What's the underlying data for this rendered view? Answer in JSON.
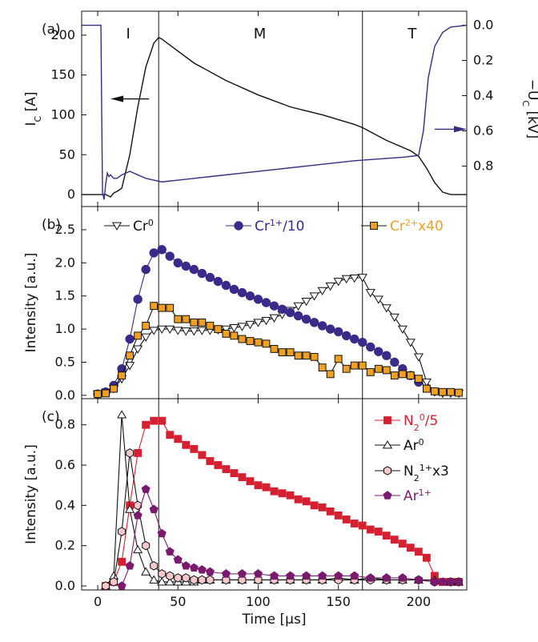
{
  "colors": {
    "black": "#111111",
    "purple": "#3b2a7e",
    "cr1": "#3b2a8a",
    "cr2": "#f0a020",
    "n2": "#d42030",
    "n2ion": "#f6c8cc",
    "ar1": "#7a1a6e"
  },
  "shared_x": {
    "xlabel": "Time [μs]",
    "xlim": [
      -10,
      230
    ],
    "xticks": [
      0,
      50,
      100,
      150,
      200
    ],
    "region_bounds": [
      38,
      165
    ]
  },
  "chart_data": [
    {
      "panel": "(a)",
      "type": "line",
      "ylabel_left": "I_C [A]",
      "ylabel_right": "−U_C [kV]",
      "ylim_left": [
        -15,
        230
      ],
      "yticks_left": [
        0,
        50,
        100,
        150,
        200
      ],
      "ylim_right": [
        1.03,
        -0.08
      ],
      "yticks_right": [
        0.0,
        0.2,
        0.4,
        0.6,
        0.8
      ],
      "yticklabels_right": [
        "0.0",
        "0.2",
        "0.4",
        "0.6",
        "0.8"
      ],
      "regions": [
        {
          "label": "I",
          "x": 19
        },
        {
          "label": "M",
          "x": 101
        },
        {
          "label": "T",
          "x": 196
        }
      ],
      "series": [
        {
          "key": "current",
          "axis": "left",
          "color": "#111111",
          "x": [
            -10,
            5,
            8,
            10,
            12,
            15,
            20,
            25,
            30,
            35,
            38,
            40,
            50,
            60,
            80,
            100,
            120,
            140,
            160,
            165,
            180,
            195,
            200,
            205,
            210,
            215,
            220,
            230
          ],
          "y": [
            0,
            0,
            -3,
            2,
            4,
            8,
            50,
            110,
            160,
            190,
            197,
            195,
            180,
            165,
            143,
            125,
            110,
            100,
            88,
            84,
            68,
            55,
            48,
            33,
            15,
            3,
            0,
            0
          ]
        },
        {
          "key": "voltage",
          "axis": "right",
          "color": "#3b2a7e",
          "x": [
            -10,
            0,
            2,
            2.5,
            3,
            4,
            5,
            6,
            7,
            8,
            10,
            12,
            15,
            20,
            25,
            30,
            35,
            40,
            50,
            70,
            100,
            130,
            160,
            190,
            200,
            203,
            206,
            210,
            215,
            220,
            230
          ],
          "y": [
            0.0,
            0.0,
            0.0,
            0.5,
            0.95,
            0.99,
            0.9,
            0.84,
            0.86,
            0.85,
            0.87,
            0.87,
            0.85,
            0.83,
            0.85,
            0.87,
            0.88,
            0.89,
            0.88,
            0.86,
            0.83,
            0.8,
            0.77,
            0.75,
            0.74,
            0.6,
            0.3,
            0.12,
            0.04,
            0.01,
            0.0
          ]
        }
      ]
    },
    {
      "panel": "(b)",
      "type": "line",
      "ylabel": "Intensity [a.u.]",
      "ylim": [
        -0.05,
        2.85
      ],
      "yticks": [
        0.0,
        0.5,
        1.0,
        1.5,
        2.0,
        2.5
      ],
      "series": [
        {
          "name": "Cr",
          "sup": "0",
          "suffix": "",
          "marker": "triangle-down",
          "color": "#111111",
          "fill": "#ffffff",
          "x": [
            0,
            5,
            10,
            15,
            20,
            25,
            30,
            35,
            40,
            45,
            50,
            55,
            60,
            65,
            70,
            75,
            80,
            85,
            90,
            95,
            100,
            105,
            110,
            115,
            120,
            125,
            130,
            135,
            140,
            145,
            150,
            155,
            160,
            165,
            170,
            175,
            180,
            185,
            190,
            195,
            200,
            205,
            210,
            215,
            220,
            225
          ],
          "y": [
            0.02,
            0.05,
            0.1,
            0.25,
            0.45,
            0.7,
            0.88,
            0.98,
            1.0,
            1.0,
            0.98,
            0.97,
            0.97,
            0.98,
            0.98,
            0.99,
            1.0,
            1.02,
            1.04,
            1.07,
            1.1,
            1.13,
            1.17,
            1.22,
            1.28,
            1.35,
            1.42,
            1.5,
            1.58,
            1.65,
            1.72,
            1.76,
            1.77,
            1.78,
            1.55,
            1.45,
            1.32,
            1.18,
            1.0,
            0.8,
            0.58,
            0.2,
            0.05,
            0.03,
            0.03,
            0.03
          ]
        },
        {
          "name": "Cr",
          "sup": "1+",
          "suffix": "/10",
          "marker": "circle",
          "color": "#3b2a8a",
          "fill": "#3b2a8a",
          "x": [
            0,
            5,
            10,
            15,
            20,
            25,
            30,
            35,
            40,
            45,
            50,
            55,
            60,
            65,
            70,
            75,
            80,
            85,
            90,
            95,
            100,
            105,
            110,
            115,
            120,
            125,
            130,
            135,
            140,
            145,
            150,
            155,
            160,
            165,
            170,
            175,
            180,
            185,
            190,
            195,
            200
          ],
          "y": [
            0.02,
            0.05,
            0.15,
            0.4,
            0.85,
            1.45,
            1.9,
            2.15,
            2.2,
            2.1,
            2.0,
            1.95,
            1.9,
            1.84,
            1.78,
            1.72,
            1.66,
            1.6,
            1.55,
            1.5,
            1.45,
            1.4,
            1.35,
            1.3,
            1.25,
            1.2,
            1.15,
            1.1,
            1.05,
            1.0,
            0.96,
            0.9,
            0.85,
            0.8,
            0.73,
            0.66,
            0.6,
            0.5,
            0.4,
            0.3,
            0.2
          ]
        },
        {
          "name": "Cr",
          "sup": "2+",
          "suffix": "x40",
          "marker": "square",
          "color": "#111111",
          "fill": "#f0a020",
          "x": [
            0,
            5,
            10,
            15,
            20,
            25,
            30,
            35,
            40,
            45,
            50,
            55,
            60,
            65,
            70,
            75,
            80,
            85,
            90,
            95,
            100,
            105,
            110,
            115,
            120,
            125,
            130,
            135,
            140,
            145,
            150,
            155,
            160,
            165,
            170,
            175,
            180,
            185,
            190,
            195,
            200,
            205,
            210,
            215,
            220,
            225
          ],
          "y": [
            0.02,
            0.03,
            0.1,
            0.3,
            0.6,
            0.9,
            1.05,
            1.35,
            1.32,
            1.32,
            1.15,
            1.15,
            1.1,
            1.1,
            1.05,
            1.0,
            0.93,
            0.9,
            0.85,
            0.82,
            0.8,
            0.78,
            0.7,
            0.65,
            0.65,
            0.6,
            0.6,
            0.58,
            0.42,
            0.32,
            0.55,
            0.4,
            0.45,
            0.45,
            0.35,
            0.4,
            0.38,
            0.3,
            0.32,
            0.3,
            0.25,
            0.1,
            0.06,
            0.05,
            0.05,
            0.04
          ]
        }
      ]
    },
    {
      "panel": "(c)",
      "type": "line",
      "ylabel": "Intensity [a.u.]",
      "ylim": [
        -0.02,
        0.93
      ],
      "yticks": [
        0.0,
        0.2,
        0.4,
        0.6,
        0.8
      ],
      "series": [
        {
          "name": "N",
          "sub": "2",
          "sup": "0",
          "suffix": "/5",
          "marker": "square",
          "color": "#d42030",
          "fill": "#d42030",
          "x": [
            5,
            10,
            15,
            20,
            25,
            30,
            35,
            40,
            45,
            50,
            55,
            60,
            65,
            70,
            75,
            80,
            85,
            90,
            95,
            100,
            105,
            110,
            115,
            120,
            125,
            130,
            135,
            140,
            145,
            150,
            155,
            160,
            165,
            170,
            175,
            180,
            185,
            190,
            195,
            200,
            205,
            210,
            215,
            220,
            225
          ],
          "y": [
            0.0,
            0.02,
            0.12,
            0.4,
            0.66,
            0.8,
            0.82,
            0.82,
            0.75,
            0.73,
            0.7,
            0.68,
            0.65,
            0.62,
            0.6,
            0.58,
            0.56,
            0.54,
            0.52,
            0.5,
            0.49,
            0.47,
            0.46,
            0.45,
            0.43,
            0.42,
            0.4,
            0.39,
            0.37,
            0.35,
            0.33,
            0.31,
            0.3,
            0.28,
            0.27,
            0.25,
            0.23,
            0.21,
            0.19,
            0.17,
            0.14,
            0.05,
            0.02,
            0.02,
            0.02
          ]
        },
        {
          "name": "Ar",
          "sup": "0",
          "suffix": "",
          "marker": "triangle-up",
          "color": "#111111",
          "fill": "#ffffff",
          "x": [
            5,
            10,
            15,
            20,
            25,
            30,
            35,
            40,
            45,
            50,
            55,
            60,
            65,
            70,
            80,
            90,
            100,
            110,
            120,
            130,
            140,
            150,
            160,
            170,
            180,
            190,
            200,
            210,
            220,
            225
          ],
          "y": [
            0.0,
            0.05,
            0.85,
            0.38,
            0.18,
            0.07,
            0.03,
            0.02,
            0.02,
            0.02,
            0.02,
            0.02,
            0.03,
            0.03,
            0.03,
            0.03,
            0.03,
            0.03,
            0.03,
            0.03,
            0.03,
            0.04,
            0.03,
            0.04,
            0.03,
            0.03,
            0.03,
            0.03,
            0.02,
            0.02
          ]
        },
        {
          "name": "N",
          "sub": "2",
          "sup": "1+",
          "suffix": "x3",
          "marker": "hexagon",
          "color": "#111111",
          "fill": "#f6c8cc",
          "x": [
            5,
            10,
            15,
            20,
            25,
            30,
            35,
            40,
            45,
            50,
            55,
            60,
            65,
            70,
            80,
            90,
            100,
            110,
            120,
            130,
            140,
            150,
            160,
            170,
            180,
            190,
            200,
            210,
            220,
            225
          ],
          "y": [
            0.0,
            0.02,
            0.27,
            0.66,
            0.4,
            0.2,
            0.1,
            0.06,
            0.05,
            0.04,
            0.04,
            0.03,
            0.03,
            0.03,
            0.03,
            0.03,
            0.03,
            0.03,
            0.03,
            0.03,
            0.03,
            0.03,
            0.03,
            0.03,
            0.03,
            0.03,
            0.03,
            0.02,
            0.02,
            0.02
          ]
        },
        {
          "name": "Ar",
          "sup": "1+",
          "suffix": "",
          "marker": "pentagon",
          "color": "#7a1a6e",
          "fill": "#7a1a6e",
          "x": [
            15,
            20,
            25,
            30,
            35,
            40,
            45,
            50,
            55,
            60,
            65,
            70,
            80,
            90,
            100,
            110,
            120,
            130,
            140,
            150,
            160,
            170,
            180,
            190,
            200,
            210,
            215,
            220,
            225
          ],
          "y": [
            0.0,
            0.1,
            0.35,
            0.48,
            0.38,
            0.26,
            0.17,
            0.13,
            0.1,
            0.09,
            0.08,
            0.07,
            0.06,
            0.06,
            0.06,
            0.05,
            0.05,
            0.05,
            0.05,
            0.05,
            0.05,
            0.04,
            0.04,
            0.04,
            0.03,
            0.02,
            0.02,
            0.02,
            0.02
          ]
        }
      ]
    }
  ]
}
